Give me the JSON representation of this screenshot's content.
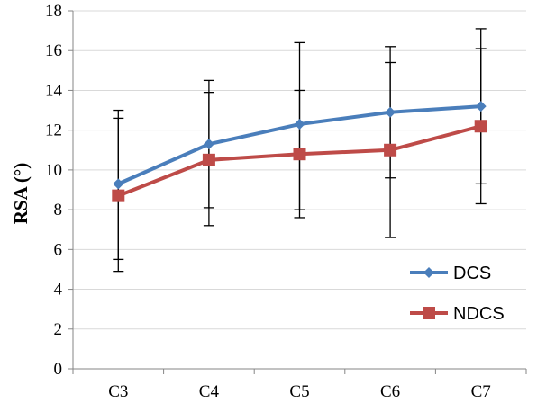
{
  "chart_data": {
    "type": "line",
    "title": "",
    "xlabel": "",
    "ylabel": "RSA (°)",
    "categories": [
      "C3",
      "C4",
      "C5",
      "C6",
      "C7"
    ],
    "ylim": [
      0,
      18
    ],
    "yticks": [
      0,
      2,
      4,
      6,
      8,
      10,
      12,
      14,
      16,
      18
    ],
    "grid": true,
    "legend_position": "bottom-right",
    "series": [
      {
        "name": "DCS",
        "color": "#4A7EBB",
        "marker": "diamond",
        "values": [
          9.3,
          11.3,
          12.3,
          12.9,
          13.2
        ],
        "error_low": [
          5.5,
          8.1,
          8.0,
          9.6,
          9.3
        ],
        "error_high": [
          13.0,
          14.5,
          16.4,
          16.2,
          17.1
        ]
      },
      {
        "name": "NDCS",
        "color": "#BE4B48",
        "marker": "square",
        "values": [
          8.7,
          10.5,
          10.8,
          11.0,
          12.2
        ],
        "error_low": [
          4.9,
          7.2,
          7.6,
          6.6,
          8.3
        ],
        "error_high": [
          12.6,
          13.9,
          14.0,
          15.4,
          16.1
        ]
      }
    ]
  }
}
